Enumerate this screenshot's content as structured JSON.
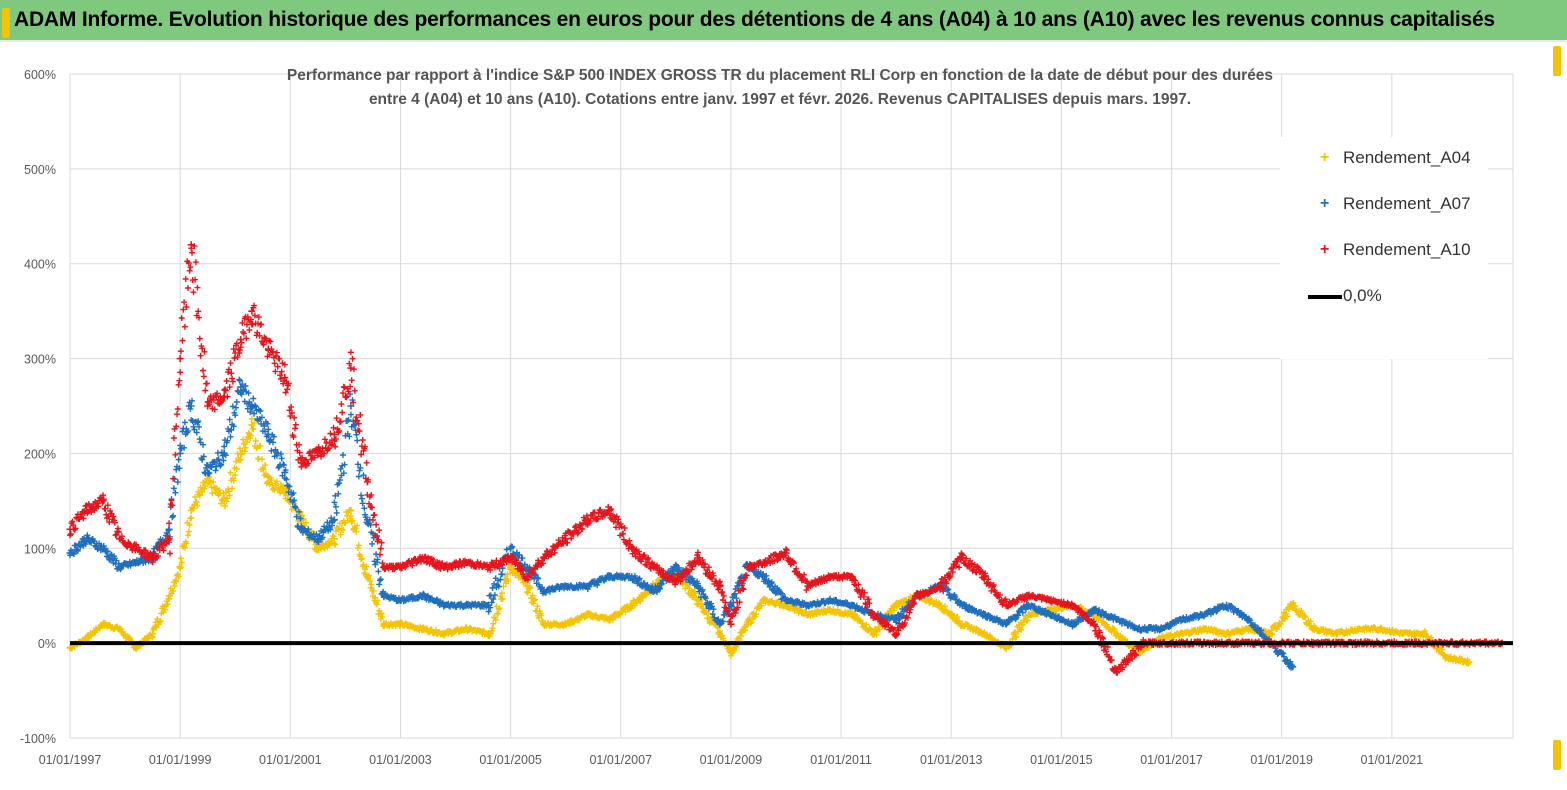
{
  "banner": {
    "title": "ADAM Informe. Evolution historique des performances en euros pour des détentions de 4 ans (A04) à 10 ans (A10) avec les revenus connus capitalisés"
  },
  "colors": {
    "banner_bg": "#7fc97f",
    "a04": "#f5c400",
    "a07": "#1f6fbf",
    "a10": "#e8141c",
    "zero": "#000000",
    "grid": "#d9d9d9",
    "axis_text": "#595959"
  },
  "chart_data": {
    "type": "scatter",
    "title_line1": "Performance par rapport à l'indice S&P 500 INDEX GROSS TR  du placement RLI Corp en fonction de la date de début pour des durées",
    "title_line2": "entre 4 (A04) et 10 ans (A10). Cotations entre janv. 1997 et févr. 2026. Revenus CAPITALISES depuis mars. 1997.",
    "xlabel": "",
    "ylabel": "",
    "ylim": [
      -100,
      600
    ],
    "xlim": [
      1997.0,
      2023.2
    ],
    "y_ticks": [
      "-100%",
      "0%",
      "100%",
      "200%",
      "300%",
      "400%",
      "500%",
      "600%"
    ],
    "y_tick_values": [
      -100,
      0,
      100,
      200,
      300,
      400,
      500,
      600
    ],
    "x_ticks": [
      "01/01/1997",
      "01/01/1999",
      "01/01/2001",
      "01/01/2003",
      "01/01/2005",
      "01/01/2007",
      "01/01/2009",
      "01/01/2011",
      "01/01/2013",
      "01/01/2015",
      "01/01/2017",
      "01/01/2019",
      "01/01/2021"
    ],
    "x_tick_values": [
      1997,
      1999,
      2001,
      2003,
      2005,
      2007,
      2009,
      2011,
      2013,
      2015,
      2017,
      2019,
      2021
    ],
    "legend_position": "top-right",
    "series": [
      {
        "name": "Rendement_A04",
        "marker": "+",
        "x": [
          1997.0,
          1997.3,
          1997.6,
          1997.9,
          1998.2,
          1998.5,
          1998.8,
          1999.0,
          1999.2,
          1999.5,
          1999.8,
          2000.1,
          2000.3,
          2000.6,
          2000.9,
          2001.2,
          2001.5,
          2001.8,
          2002.1,
          2002.4,
          2002.7,
          2003.0,
          2003.4,
          2003.8,
          2004.2,
          2004.6,
          2005.0,
          2005.3,
          2005.6,
          2006.0,
          2006.4,
          2006.8,
          2007.2,
          2007.6,
          2008.0,
          2008.4,
          2008.8,
          2009.0,
          2009.3,
          2009.6,
          2010.0,
          2010.4,
          2010.8,
          2011.2,
          2011.6,
          2012.0,
          2012.4,
          2012.8,
          2013.2,
          2013.6,
          2014.0,
          2014.4,
          2014.8,
          2015.2,
          2015.6,
          2016.0,
          2016.4,
          2016.8,
          2017.2,
          2017.6,
          2018.0,
          2018.4,
          2018.8,
          2019.2,
          2019.6,
          2020.0,
          2020.4,
          2020.8,
          2021.2,
          2021.6,
          2022.0,
          2022.4
        ],
        "values": [
          -5,
          5,
          20,
          15,
          -5,
          10,
          50,
          80,
          140,
          170,
          150,
          200,
          230,
          170,
          160,
          130,
          100,
          110,
          140,
          70,
          20,
          20,
          15,
          10,
          15,
          10,
          80,
          60,
          20,
          20,
          30,
          25,
          40,
          60,
          75,
          45,
          10,
          -10,
          20,
          45,
          40,
          30,
          35,
          30,
          10,
          40,
          50,
          40,
          20,
          10,
          -5,
          30,
          35,
          40,
          30,
          10,
          -10,
          5,
          10,
          15,
          10,
          15,
          10,
          40,
          15,
          10,
          15,
          15,
          10,
          10,
          -15,
          -20
        ]
      },
      {
        "name": "Rendement_A07",
        "marker": "+",
        "x": [
          1997.0,
          1997.3,
          1997.6,
          1997.9,
          1998.2,
          1998.5,
          1998.8,
          1999.0,
          1999.2,
          1999.5,
          1999.8,
          2000.1,
          2000.3,
          2000.6,
          2000.9,
          2001.2,
          2001.5,
          2001.8,
          2002.1,
          2002.4,
          2002.7,
          2003.0,
          2003.4,
          2003.8,
          2004.2,
          2004.6,
          2005.0,
          2005.3,
          2005.6,
          2006.0,
          2006.4,
          2006.8,
          2007.2,
          2007.6,
          2008.0,
          2008.4,
          2008.8,
          2009.0,
          2009.3,
          2009.6,
          2010.0,
          2010.4,
          2010.8,
          2011.2,
          2011.6,
          2012.0,
          2012.4,
          2012.8,
          2013.2,
          2013.6,
          2014.0,
          2014.4,
          2014.8,
          2015.2,
          2015.6,
          2016.0,
          2016.4,
          2016.8,
          2017.2,
          2017.6,
          2018.0,
          2018.4,
          2018.8,
          2019.2
        ],
        "values": [
          95,
          110,
          100,
          80,
          85,
          90,
          120,
          200,
          250,
          180,
          200,
          270,
          250,
          220,
          180,
          120,
          110,
          130,
          250,
          130,
          50,
          45,
          50,
          40,
          40,
          40,
          100,
          80,
          55,
          60,
          60,
          70,
          70,
          55,
          80,
          60,
          20,
          40,
          80,
          70,
          45,
          40,
          45,
          40,
          30,
          25,
          50,
          60,
          40,
          30,
          20,
          40,
          30,
          20,
          35,
          25,
          15,
          15,
          25,
          30,
          40,
          25,
          0,
          -25
        ]
      },
      {
        "name": "Rendement_A10",
        "marker": "+",
        "x": [
          1997.0,
          1997.3,
          1997.6,
          1997.9,
          1998.2,
          1998.5,
          1998.8,
          1999.0,
          1999.2,
          1999.5,
          1999.8,
          2000.1,
          2000.3,
          2000.6,
          2000.9,
          2001.2,
          2001.5,
          2001.8,
          2002.1,
          2002.4,
          2002.7,
          2003.0,
          2003.4,
          2003.8,
          2004.2,
          2004.6,
          2005.0,
          2005.3,
          2005.6,
          2006.0,
          2006.4,
          2006.8,
          2007.2,
          2007.6,
          2008.0,
          2008.4,
          2008.8,
          2009.0,
          2009.3,
          2009.6,
          2010.0,
          2010.4,
          2010.8,
          2011.2,
          2011.6,
          2012.0,
          2012.4,
          2012.8,
          2013.2,
          2013.6,
          2014.0,
          2014.4,
          2014.8,
          2015.2,
          2015.6,
          2016.0,
          2016.5,
          2017.0,
          2017.5,
          2018.0,
          2018.5,
          2019.0,
          2019.5,
          2020.0,
          2020.5,
          2021.0,
          2021.5,
          2022.0,
          2022.5,
          2023.0
        ],
        "values": [
          120,
          140,
          150,
          110,
          100,
          90,
          110,
          300,
          420,
          250,
          260,
          320,
          350,
          310,
          280,
          190,
          200,
          220,
          290,
          170,
          80,
          80,
          90,
          80,
          85,
          80,
          90,
          70,
          90,
          110,
          130,
          140,
          100,
          80,
          65,
          90,
          60,
          20,
          80,
          85,
          95,
          60,
          70,
          70,
          30,
          10,
          50,
          60,
          90,
          70,
          40,
          50,
          45,
          40,
          20,
          -30,
          0,
          0,
          0,
          0,
          0,
          0,
          0,
          0,
          0,
          0,
          0,
          0,
          0,
          0
        ]
      },
      {
        "name": "0,0%",
        "marker": "line",
        "x": [
          1997.0,
          2023.2
        ],
        "values": [
          0,
          0
        ]
      }
    ]
  }
}
